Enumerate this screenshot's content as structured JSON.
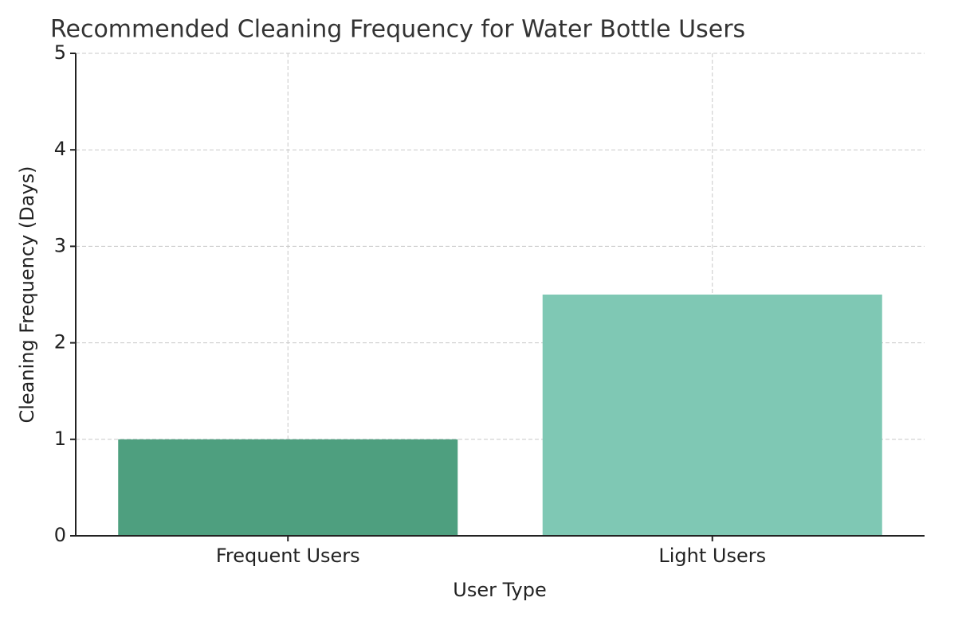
{
  "chart_data": {
    "type": "bar",
    "title": "Recommended Cleaning Frequency for Water Bottle Users",
    "x_label": "User Type",
    "y_label": "Cleaning Frequency (Days)",
    "categories": [
      "Frequent Users",
      "Light Users"
    ],
    "values": [
      1,
      2.5
    ],
    "colors": [
      "#4e9f7f",
      "#7fc8b4"
    ],
    "ylim": [
      0,
      5
    ],
    "yticks": [
      0,
      1,
      2,
      3,
      4,
      5
    ],
    "grid": true
  }
}
